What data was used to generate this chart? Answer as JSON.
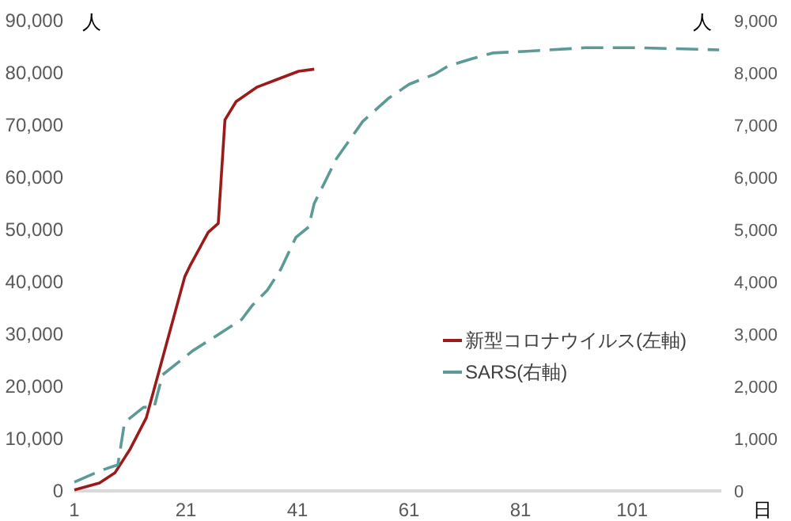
{
  "chart_data": {
    "type": "line",
    "xlabel": "日",
    "ylabel": "人",
    "y2label": "人",
    "xlim": [
      1,
      117
    ],
    "xticks": [
      1,
      21,
      41,
      61,
      81,
      101
    ],
    "ylim": [
      0,
      90000
    ],
    "yticks": [
      {
        "value": 0,
        "label": "0"
      },
      {
        "value": 10000,
        "label": "10,000"
      },
      {
        "value": 20000,
        "label": "20,000"
      },
      {
        "value": 30000,
        "label": "30,000"
      },
      {
        "value": 40000,
        "label": "40,000"
      },
      {
        "value": 50000,
        "label": "50,000"
      },
      {
        "value": 60000,
        "label": "60,000"
      },
      {
        "value": 70000,
        "label": "70,000"
      },
      {
        "value": 80000,
        "label": "80,000"
      },
      {
        "value": 90000,
        "label": "90,000"
      }
    ],
    "y2lim": [
      0,
      9000
    ],
    "y2ticks": [
      {
        "value": 0,
        "label": "0"
      },
      {
        "value": 1000,
        "label": "1,000"
      },
      {
        "value": 2000,
        "label": "2,000"
      },
      {
        "value": 3000,
        "label": "3,000"
      },
      {
        "value": 4000,
        "label": "4,000"
      },
      {
        "value": 5000,
        "label": "5,000"
      },
      {
        "value": 6000,
        "label": "6,000"
      },
      {
        "value": 7000,
        "label": "7,000"
      },
      {
        "value": 8000,
        "label": "8,000"
      },
      {
        "value": 9000,
        "label": "9,000"
      }
    ],
    "grid": false,
    "legend": "right",
    "marker": "none",
    "series": [
      {
        "name": "新型コロナウイルス(左軸)",
        "color": "#9b1b1b",
        "line_style": "solid",
        "x": [
          1,
          5.5,
          8.3,
          11,
          13.9,
          16.2,
          18.5,
          20.8,
          21.7,
          25,
          26.8,
          28,
          30,
          33.8,
          37,
          41.2,
          44
        ],
        "values": [
          200,
          1500,
          3500,
          8000,
          14000,
          23000,
          32000,
          41000,
          43000,
          49500,
          51200,
          71000,
          74500,
          77300,
          78600,
          80300,
          80700
        ]
      },
      {
        "name": "SARS(右軸)",
        "color": "#5b9a96",
        "line_style": "dashed",
        "axis": "y2",
        "x": [
          1,
          6,
          8.8,
          10,
          13.4,
          15.3,
          16.8,
          22.2,
          25.9,
          31,
          32.9,
          35.6,
          38,
          40.7,
          43,
          44,
          48,
          52.7,
          57.4,
          61,
          65.7,
          68,
          72,
          76,
          81.5,
          92.6,
          102,
          116.6
        ],
        "values": [
          170,
          400,
          500,
          1310,
          1600,
          1600,
          2220,
          2680,
          2930,
          3280,
          3550,
          3840,
          4240,
          4850,
          5050,
          5500,
          6360,
          7070,
          7520,
          7780,
          7980,
          8130,
          8260,
          8380,
          8410,
          8480,
          8480,
          8440
        ]
      }
    ]
  }
}
